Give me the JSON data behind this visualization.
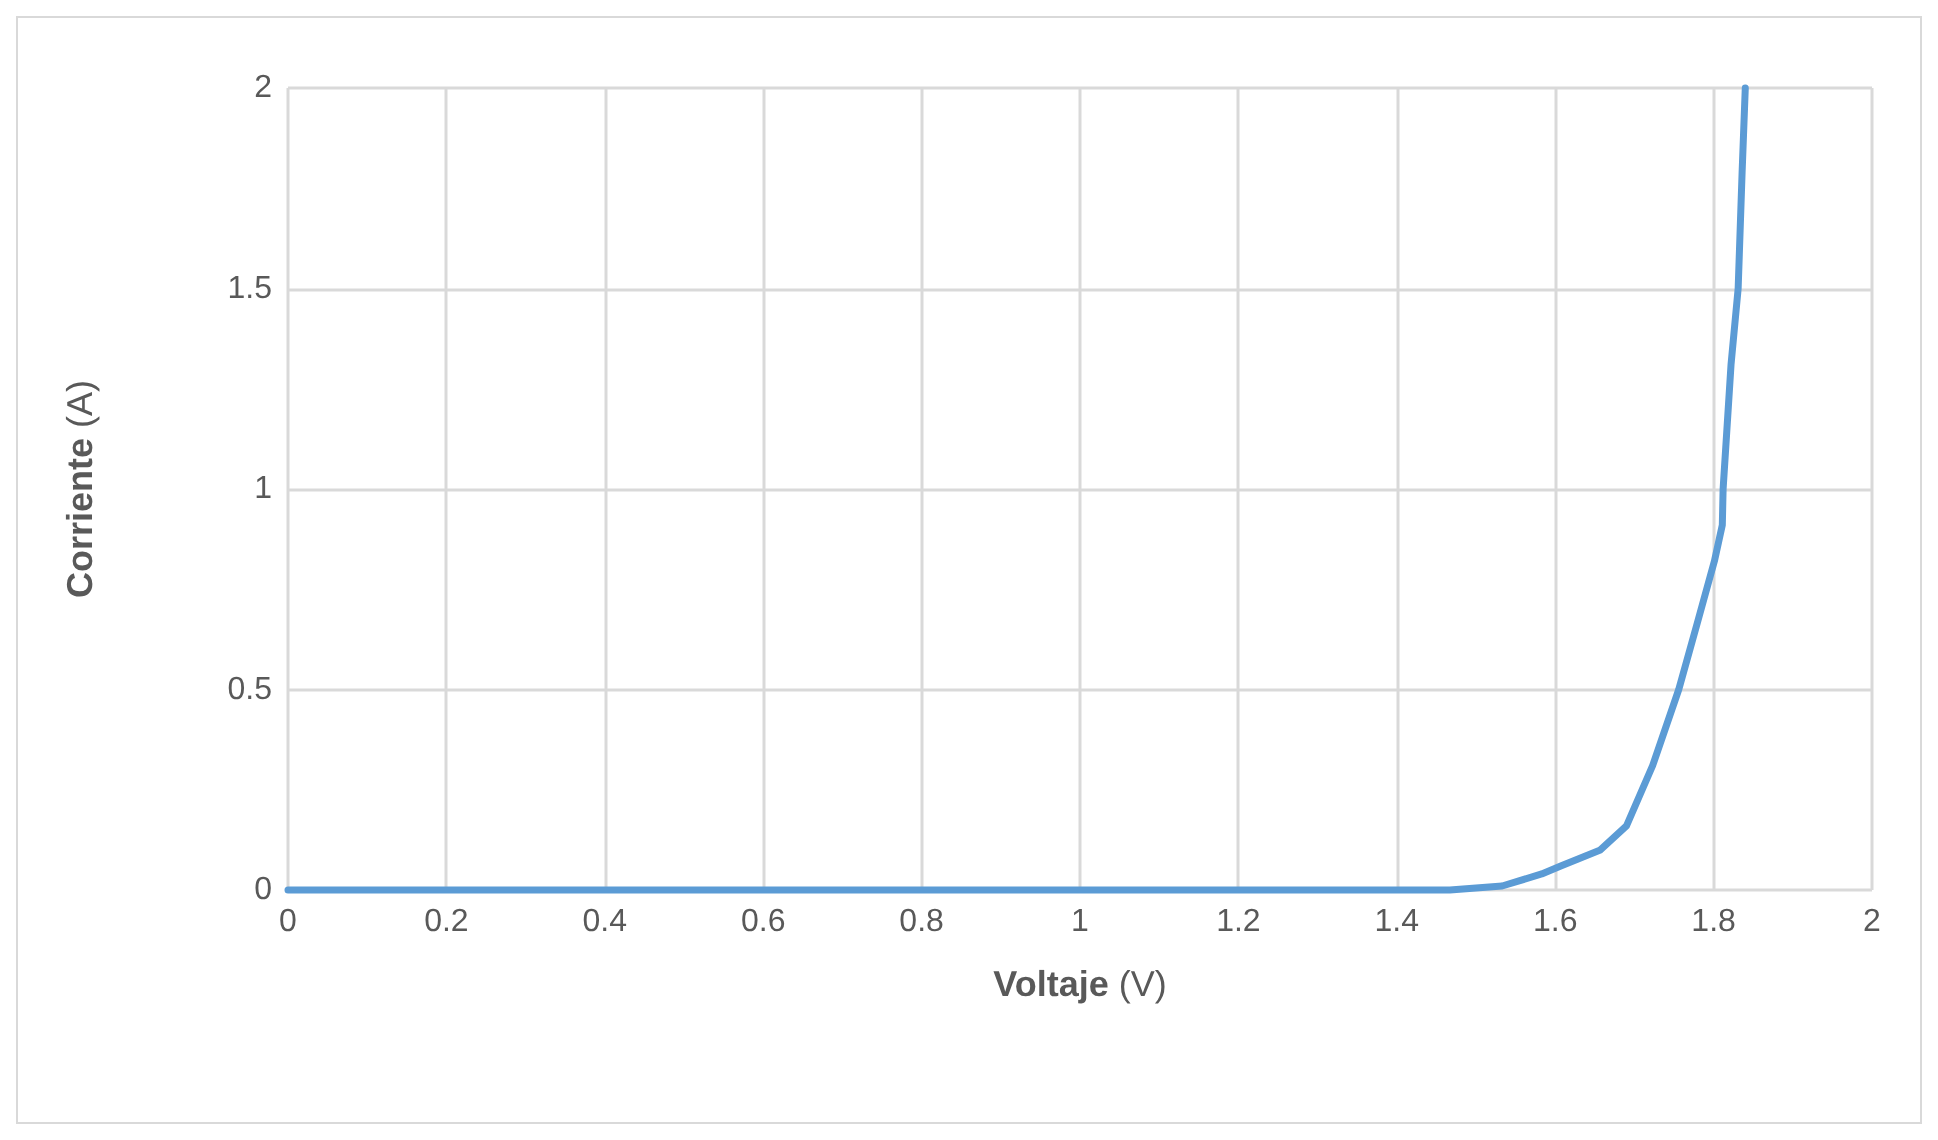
{
  "chart_data": {
    "type": "line",
    "xlabel": "Voltaje (V)",
    "ylabel": "Corriente (A)",
    "xlim": [
      0,
      2
    ],
    "xticks": [
      0,
      0.2,
      0.4,
      0.6,
      0.8,
      1,
      1.2,
      1.4,
      1.6,
      1.8,
      2
    ],
    "ylim": [
      0,
      2
    ],
    "yticks": [
      0,
      0.5,
      1,
      1.5,
      2
    ],
    "grid": true,
    "marker": "none",
    "line_style": "solid",
    "series": [
      {
        "color": "#5b9bd5",
        "x": [
          0,
          0.4,
          0.8,
          1.2,
          1.4,
          1.467,
          1.533,
          1.583,
          1.607,
          1.657,
          1.69,
          1.723,
          1.756,
          1.78,
          1.801,
          1.811,
          1.812,
          1.822,
          1.831,
          1.836,
          1.84
        ],
        "values": [
          0,
          0,
          0,
          0,
          0,
          0,
          0.01,
          0.04,
          0.06,
          0.1,
          0.16,
          0.31,
          0.5,
          0.67,
          0.82,
          0.91,
          1.0,
          1.31,
          1.5,
          1.79,
          2.0
        ]
      }
    ]
  }
}
